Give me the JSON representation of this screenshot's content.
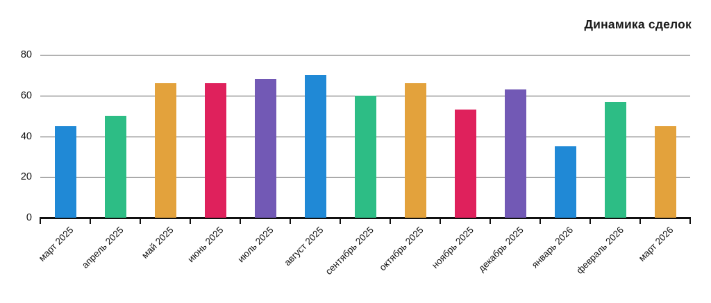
{
  "chart_data": {
    "type": "bar",
    "title": "Динамика сделок",
    "categories": [
      "март 2025",
      "апрель 2025",
      "май 2025",
      "июнь 2025",
      "июль 2025",
      "август 2025",
      "сентябрь 2025",
      "октябрь 2025",
      "ноябрь 2025",
      "декабрь 2025",
      "январь 2026",
      "февраль 2026",
      "март 2026"
    ],
    "values": [
      45,
      50,
      66,
      66,
      68,
      70,
      60,
      66,
      53,
      63,
      35,
      57,
      45
    ],
    "xlabel": "",
    "ylabel": "",
    "ylim": [
      0,
      80
    ],
    "yticks": [
      0,
      20,
      40,
      60,
      80
    ],
    "grid": true,
    "legend": null,
    "bar_palette": [
      "#2089d6",
      "#2dbd85",
      "#e3a23c",
      "#df215c",
      "#7259b5"
    ],
    "grid_color": "#555555",
    "axis_color": "#111111",
    "text_color": "#111111",
    "background_color": "#ffffff"
  }
}
